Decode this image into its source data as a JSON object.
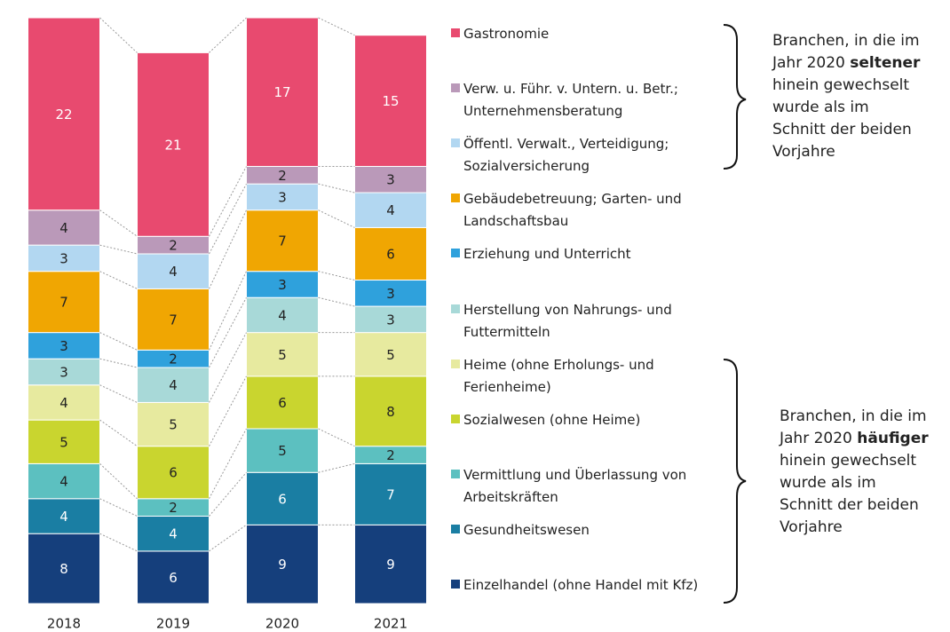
{
  "chart_data": {
    "type": "stacked_bar",
    "categories": [
      "2018",
      "2019",
      "2020",
      "2021"
    ],
    "series": [
      {
        "name": "Einzelhandel (ohne Handel mit Kfz)",
        "color": "#153f7c",
        "values": [
          8,
          6,
          9,
          9
        ]
      },
      {
        "name": "Gesundheitswesen",
        "color": "#1a7ea3",
        "values": [
          4,
          4,
          6,
          7
        ]
      },
      {
        "name": "Vermittlung und Überlassung von Arbeitskräften",
        "color": "#5cc0c0",
        "values": [
          4,
          2,
          5,
          2
        ]
      },
      {
        "name": "Sozialwesen (ohne Heime)",
        "color": "#c9d52f",
        "values": [
          5,
          6,
          6,
          8
        ]
      },
      {
        "name": "Heime (ohne Erholungs- und Ferienheime)",
        "color": "#e7ea9f",
        "values": [
          4,
          5,
          5,
          5
        ]
      },
      {
        "name": "Herstellung von Nahrungs- und Futtermitteln",
        "color": "#a8d9d8",
        "values": [
          3,
          4,
          4,
          3
        ]
      },
      {
        "name": "Erziehung und Unterricht",
        "color": "#2fa1dc",
        "values": [
          3,
          2,
          3,
          3
        ]
      },
      {
        "name": "Gebäudebetreuung; Garten- und Landschaftsbau",
        "color": "#f0a602",
        "values": [
          7,
          7,
          7,
          6
        ]
      },
      {
        "name": "Öffentl. Verwalt., Verteidigung; Sozialversicherung",
        "color": "#b2d7f1",
        "values": [
          3,
          4,
          3,
          4
        ]
      },
      {
        "name": "Verw. u. Führ. v. Untern. u. Betr.; Unternehmensberatung",
        "color": "#ba99b9",
        "values": [
          4,
          2,
          2,
          3
        ]
      },
      {
        "name": "Gastronomie",
        "color": "#e84a6f",
        "values": [
          22,
          21,
          17,
          15
        ]
      }
    ],
    "ylim": [
      0,
      67
    ],
    "annotations": [
      {
        "text_before": "Branchen, in die im Jahr 2020",
        "emphasis": "seltener",
        "text_after": "hinein gewechselt wurde als im Schnitt der beiden Vorjahre"
      },
      {
        "text_before": "Branchen, in die im Jahr 2020",
        "emphasis": "häufiger",
        "text_after": "hinein gewechselt wurde als im Schnitt der beiden Vorjahre"
      }
    ]
  }
}
